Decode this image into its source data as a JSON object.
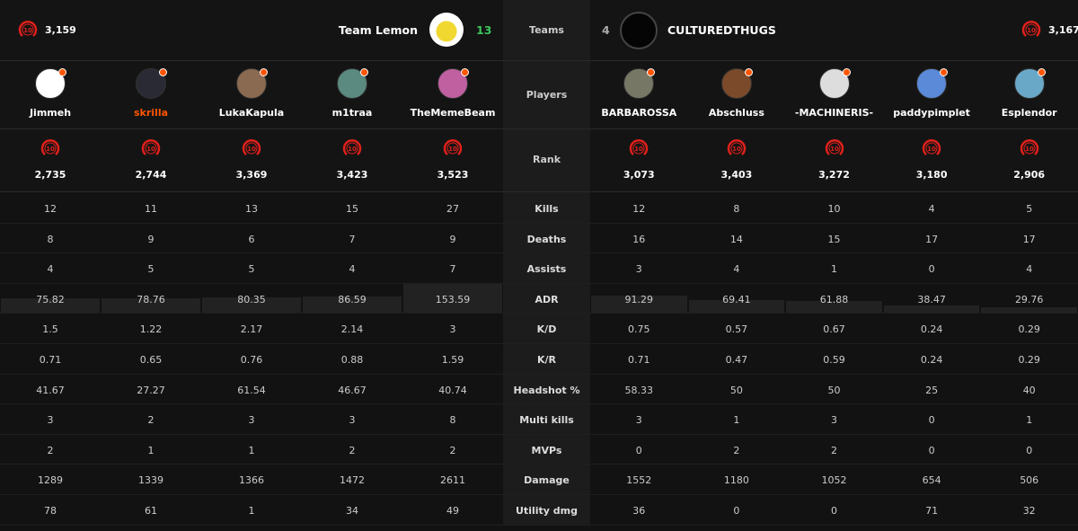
{
  "teams_label": "Teams",
  "players_label": "Players",
  "rank_label": "Rank",
  "team1": {
    "name": "Team Lemon",
    "score": 13,
    "elo": "3,159",
    "level": 10,
    "players": [
      {
        "name": "Jimmeh",
        "level": 10,
        "elo": "2,735"
      },
      {
        "name": "skrilla",
        "level": 10,
        "elo": "2,744"
      },
      {
        "name": "LukaKapula",
        "level": 10,
        "elo": "3,369"
      },
      {
        "name": "m1traa",
        "level": 10,
        "elo": "3,423"
      },
      {
        "name": "TheMemeBeam",
        "level": 10,
        "elo": "3,523"
      }
    ]
  },
  "team2": {
    "name": "CULTUREDTHUGS",
    "score": 4,
    "elo": "3,167",
    "level": 10,
    "players": [
      {
        "name": "BARBAROSSA",
        "level": 10,
        "elo": "3,073"
      },
      {
        "name": "Abschluss",
        "level": 10,
        "elo": "3,403"
      },
      {
        "name": "-MACHINERIS-",
        "level": 10,
        "elo": "3,272"
      },
      {
        "name": "paddypimplet",
        "level": 10,
        "elo": "3,180"
      },
      {
        "name": "Esplendor",
        "level": 10,
        "elo": "2,906"
      }
    ]
  },
  "stats": [
    {
      "label": "Kills",
      "team1": [
        12,
        11,
        13,
        15,
        27
      ],
      "team2": [
        12,
        8,
        10,
        4,
        5
      ]
    },
    {
      "label": "Deaths",
      "team1": [
        8,
        9,
        6,
        7,
        9
      ],
      "team2": [
        16,
        14,
        15,
        17,
        17
      ]
    },
    {
      "label": "Assists",
      "team1": [
        4,
        5,
        5,
        4,
        7
      ],
      "team2": [
        3,
        4,
        1,
        0,
        4
      ]
    },
    {
      "label": "ADR",
      "team1": [
        75.82,
        78.76,
        80.35,
        86.59,
        153.59
      ],
      "team2": [
        91.29,
        69.41,
        61.88,
        38.47,
        29.76
      ]
    },
    {
      "label": "K/D",
      "team1": [
        1.5,
        1.22,
        2.17,
        2.14,
        3
      ],
      "team2": [
        0.75,
        0.57,
        0.67,
        0.24,
        0.29
      ]
    },
    {
      "label": "K/R",
      "team1": [
        0.71,
        0.65,
        0.76,
        0.88,
        1.59
      ],
      "team2": [
        0.71,
        0.47,
        0.59,
        0.24,
        0.29
      ]
    },
    {
      "label": "Headshot %",
      "team1": [
        41.67,
        27.27,
        61.54,
        46.67,
        40.74
      ],
      "team2": [
        58.33,
        50,
        50,
        25,
        40
      ]
    },
    {
      "label": "Multi kills",
      "team1": [
        3,
        2,
        3,
        3,
        8
      ],
      "team2": [
        3,
        1,
        3,
        0,
        1
      ]
    },
    {
      "label": "MVPs",
      "team1": [
        2,
        1,
        1,
        2,
        2
      ],
      "team2": [
        0,
        2,
        2,
        0,
        0
      ]
    },
    {
      "label": "Damage",
      "team1": [
        1289,
        1339,
        1366,
        1472,
        2611
      ],
      "team2": [
        1552,
        1180,
        1052,
        654,
        506
      ]
    },
    {
      "label": "Utility dmg",
      "team1": [
        78,
        61,
        1,
        34,
        49
      ],
      "team2": [
        36,
        0,
        0,
        71,
        32
      ]
    }
  ]
}
